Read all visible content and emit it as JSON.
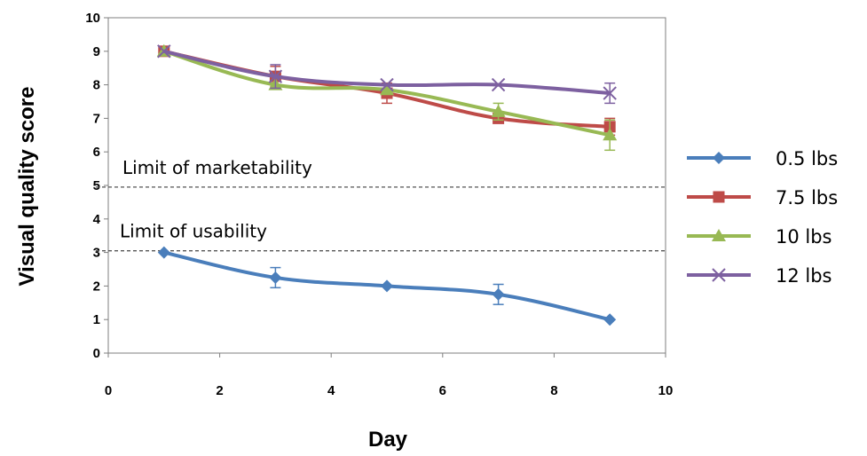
{
  "chart_data": {
    "type": "line",
    "xlabel": "Day",
    "ylabel": "Visual quality score",
    "xlim": [
      0,
      10
    ],
    "ylim": [
      0,
      10
    ],
    "xticks": [
      "0",
      "2",
      "4",
      "6",
      "8",
      "10"
    ],
    "yticks": [
      "0",
      "1",
      "2",
      "3",
      "4",
      "5",
      "6",
      "7",
      "8",
      "9",
      "10"
    ],
    "grid": false,
    "legend_position": "right",
    "x": [
      1,
      3,
      5,
      7,
      9
    ],
    "series": [
      {
        "name": "0.5 lbs",
        "color": "#4a7ebb",
        "marker": "diamond",
        "values": [
          3.0,
          2.25,
          2.0,
          1.75,
          1.0
        ],
        "errors": [
          0,
          0.3,
          0,
          0.3,
          0
        ]
      },
      {
        "name": "7.5 lbs",
        "color": "#be4b48",
        "marker": "square",
        "values": [
          9.0,
          8.25,
          7.75,
          7.0,
          6.75
        ],
        "errors": [
          0,
          0.3,
          0.3,
          0,
          0.25
        ]
      },
      {
        "name": "10 lbs",
        "color": "#98b954",
        "marker": "triangle",
        "values": [
          9.0,
          8.0,
          7.85,
          7.2,
          6.5
        ],
        "errors": [
          0,
          0,
          0,
          0.25,
          0.45
        ]
      },
      {
        "name": "12 lbs",
        "color": "#7d60a0",
        "marker": "x",
        "values": [
          9.0,
          8.25,
          8.0,
          8.0,
          7.75
        ],
        "errors": [
          0,
          0.35,
          0,
          0,
          0.3
        ]
      }
    ],
    "reference_lines": [
      {
        "label": "Limit of marketability",
        "y": 4.95
      },
      {
        "label": "Limit of usability",
        "y": 3.05
      }
    ]
  }
}
